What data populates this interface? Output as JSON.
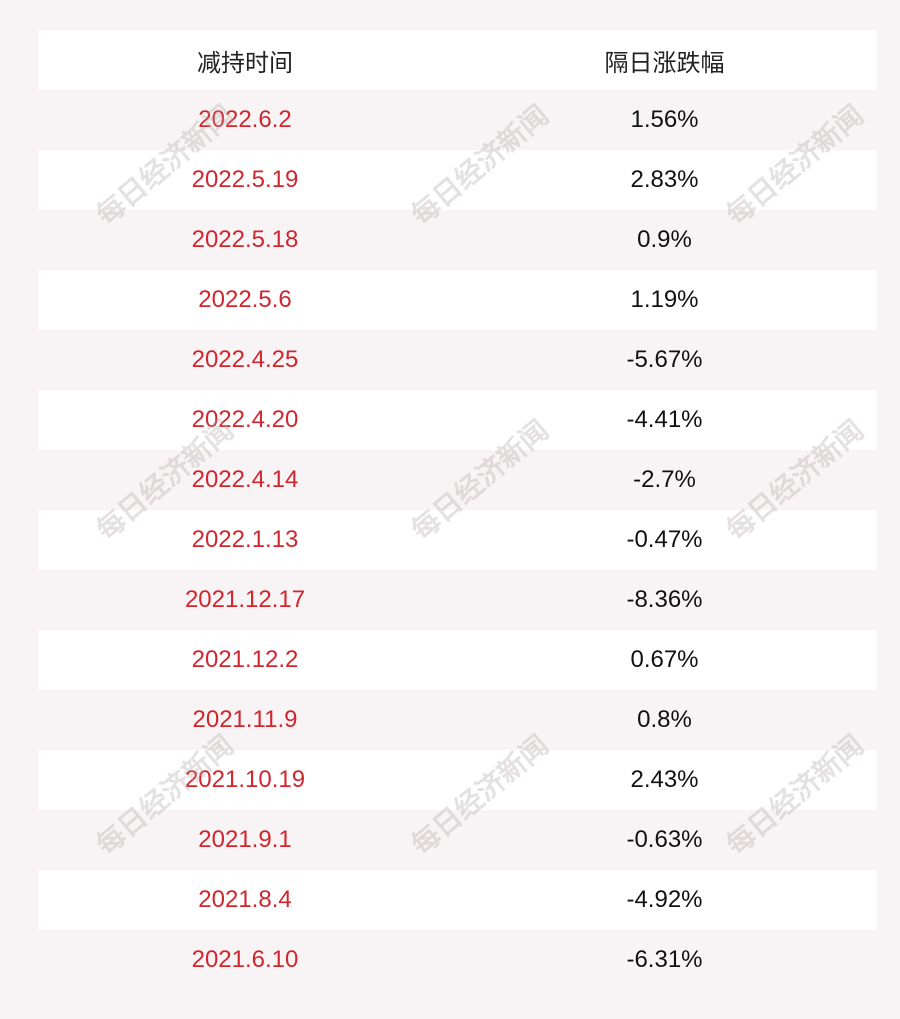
{
  "table": {
    "header": [
      "减持时间",
      "隔日涨跌幅"
    ],
    "rows": [
      [
        "2022.6.2",
        "1.56%"
      ],
      [
        "2022.5.19",
        "2.83%"
      ],
      [
        "2022.5.18",
        "0.9%"
      ],
      [
        "2022.5.6",
        "1.19%"
      ],
      [
        "2022.4.25",
        "-5.67%"
      ],
      [
        "2022.4.20",
        "-4.41%"
      ],
      [
        "2022.4.14",
        "-2.7%"
      ],
      [
        "2022.1.13",
        "-0.47%"
      ],
      [
        "2021.12.17",
        "-8.36%"
      ],
      [
        "2021.12.2",
        "0.67%"
      ],
      [
        "2021.11.9",
        "0.8%"
      ],
      [
        "2021.10.19",
        "2.43%"
      ],
      [
        "2021.9.1",
        "-0.63%"
      ],
      [
        "2021.8.4",
        "-4.92%"
      ],
      [
        "2021.6.10",
        "-6.31%"
      ]
    ]
  },
  "watermark": "每日经济新闻"
}
